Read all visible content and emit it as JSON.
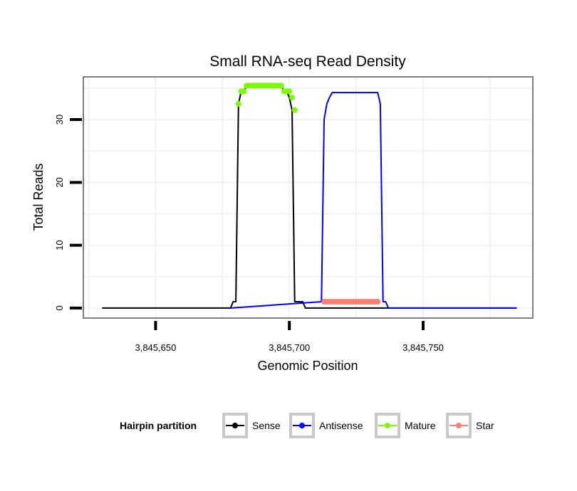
{
  "chart_data": {
    "type": "line",
    "title": "Small RNA-seq Read Density",
    "xlabel": "Genomic Position",
    "ylabel": "Total Reads",
    "xlim": [
      3845623,
      3845791
    ],
    "ylim": [
      -1.6,
      36.8
    ],
    "x_ticks": [
      {
        "value": 3845650,
        "label": "3,845,650"
      },
      {
        "value": 3845700,
        "label": "3,845,700"
      },
      {
        "value": 3845750,
        "label": "3,845,750"
      }
    ],
    "y_ticks": [
      {
        "value": 0,
        "label": "0"
      },
      {
        "value": 10,
        "label": "10"
      },
      {
        "value": 20,
        "label": "20"
      },
      {
        "value": 30,
        "label": "30"
      }
    ],
    "grid": true,
    "legend": {
      "title": "Hairpin partition",
      "position": "bottom",
      "entries": [
        {
          "name": "Sense",
          "color": "#000000"
        },
        {
          "name": "Antisense",
          "color": "#0000ff"
        },
        {
          "name": "Mature",
          "color": "#7cfc00"
        },
        {
          "name": "Star",
          "color": "#fa8072"
        }
      ]
    },
    "series": [
      {
        "name": "Sense",
        "color": "#000000",
        "style": "line",
        "x": [
          3845630,
          3845678,
          3845679,
          3845680,
          3845681,
          3845682,
          3845683,
          3845684,
          3845685,
          3845697,
          3845698,
          3845699,
          3845700,
          3845701,
          3845702,
          3845703,
          3845705,
          3845706,
          3845785
        ],
        "y": [
          0,
          0,
          1,
          1,
          32.5,
          34.5,
          34.5,
          35.4,
          35.4,
          35.4,
          34.5,
          34.5,
          33.5,
          31.5,
          1,
          1,
          1,
          0,
          0
        ]
      },
      {
        "name": "Antisense",
        "color": "#0000ff",
        "style": "line",
        "x": [
          3845678,
          3845712,
          3845713,
          3845714,
          3845715,
          3845716,
          3845717,
          3845733,
          3845734,
          3845735,
          3845736,
          3845737,
          3845785
        ],
        "y": [
          0,
          1,
          30,
          32.5,
          33.5,
          34.3,
          34.3,
          34.3,
          32.5,
          1,
          1,
          0,
          0
        ]
      },
      {
        "name": "Mature",
        "color": "#7cfc00",
        "style": "points",
        "x": [
          3845681,
          3845682,
          3845683,
          3845684,
          3845685,
          3845686,
          3845687,
          3845688,
          3845689,
          3845690,
          3845691,
          3845692,
          3845693,
          3845694,
          3845695,
          3845696,
          3845697,
          3845698,
          3845699,
          3845700,
          3845701,
          3845702
        ],
        "y": [
          32.5,
          34.5,
          34.5,
          35.4,
          35.4,
          35.4,
          35.4,
          35.4,
          35.4,
          35.4,
          35.4,
          35.4,
          35.4,
          35.4,
          35.4,
          35.4,
          35.4,
          34.5,
          34.5,
          34.5,
          33.5,
          31.5
        ]
      },
      {
        "name": "Star",
        "color": "#fa8072",
        "style": "points",
        "x": [
          3845713,
          3845714,
          3845715,
          3845716,
          3845717,
          3845718,
          3845719,
          3845720,
          3845721,
          3845722,
          3845723,
          3845724,
          3845725,
          3845726,
          3845727,
          3845728,
          3845729,
          3845730,
          3845731,
          3845732,
          3845733
        ],
        "y": [
          1,
          1,
          1,
          1,
          1,
          1,
          1,
          1,
          1,
          1,
          1,
          1,
          1,
          1,
          1,
          1,
          1,
          1,
          1,
          1,
          1
        ]
      }
    ]
  }
}
